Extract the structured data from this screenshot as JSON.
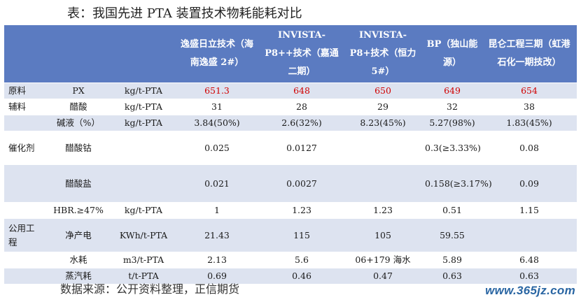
{
  "title": "表：我国先进 PTA 装置技术物耗能耗对比",
  "header": {
    "col1": "",
    "col2": "",
    "col3": "",
    "col4": "逸盛日立技术（海南逸盛 2#）",
    "col5": "INVISTA-P8++技术（嘉通二期）",
    "col6": "INVISTA-P8+技术（恒力 5#）",
    "col7": "BP（独山能源）",
    "col8": "昆仑工程三期（虹港石化一期技改）"
  },
  "rows": {
    "px": {
      "cat": "原料",
      "item": "PX",
      "unit": "kg/t-PTA",
      "v": [
        "651.3",
        "648",
        "650",
        "649",
        "654"
      ]
    },
    "acetic": {
      "cat": "辅料",
      "item": "醋酸",
      "unit": "kg/t-PTA",
      "v": [
        "31",
        "28",
        "29",
        "32",
        "38"
      ]
    },
    "alkali": {
      "cat": "",
      "item": "碱液（%）",
      "unit": "kg/t-PTA",
      "v": [
        "3.84(50%)",
        "2.6(32%)",
        "8.23(45%)",
        "5.27(98%)",
        "1.83(45%)"
      ]
    },
    "cobalt": {
      "cat": "催化剂",
      "item": "醋酸钴",
      "unit": "",
      "v": [
        "0.025",
        "0.0127",
        "",
        "0.3(≥3.33%)",
        "0.08"
      ]
    },
    "salt": {
      "cat": "",
      "item": "醋酸盐",
      "unit": "",
      "v": [
        "0.021",
        "0.0027",
        "",
        "0.158(≥3.17%)",
        "0.09"
      ]
    },
    "hbr": {
      "cat": "",
      "item": "HBR.≥47%",
      "unit": "kg/t-PTA",
      "v": [
        "1",
        "1.23",
        "1.23",
        "0.51",
        "1.15"
      ]
    },
    "power": {
      "cat": "公用工程",
      "item": "净产电",
      "unit": "KWh/t-PTA",
      "v": [
        "21.43",
        "115",
        "105",
        "59.55",
        ""
      ]
    },
    "water": {
      "cat": "",
      "item": "水耗",
      "unit": "m3/t-PTA",
      "v": [
        "2.13",
        "5.6",
        "06+179 海水",
        "5.89",
        "6.48"
      ]
    },
    "steam": {
      "cat": "",
      "item": "蒸汽耗",
      "unit": "t/t-PTA",
      "v": [
        "0.69",
        "0.46",
        "0.47",
        "0.63",
        "0.63"
      ]
    }
  },
  "footer": "数据来源：公开资料整理，正信期货",
  "watermark": "www.365jz.com",
  "colors": {
    "header_bg": "#5b7bc1",
    "shade": "#dde3f0",
    "highlight": "#d00000"
  }
}
